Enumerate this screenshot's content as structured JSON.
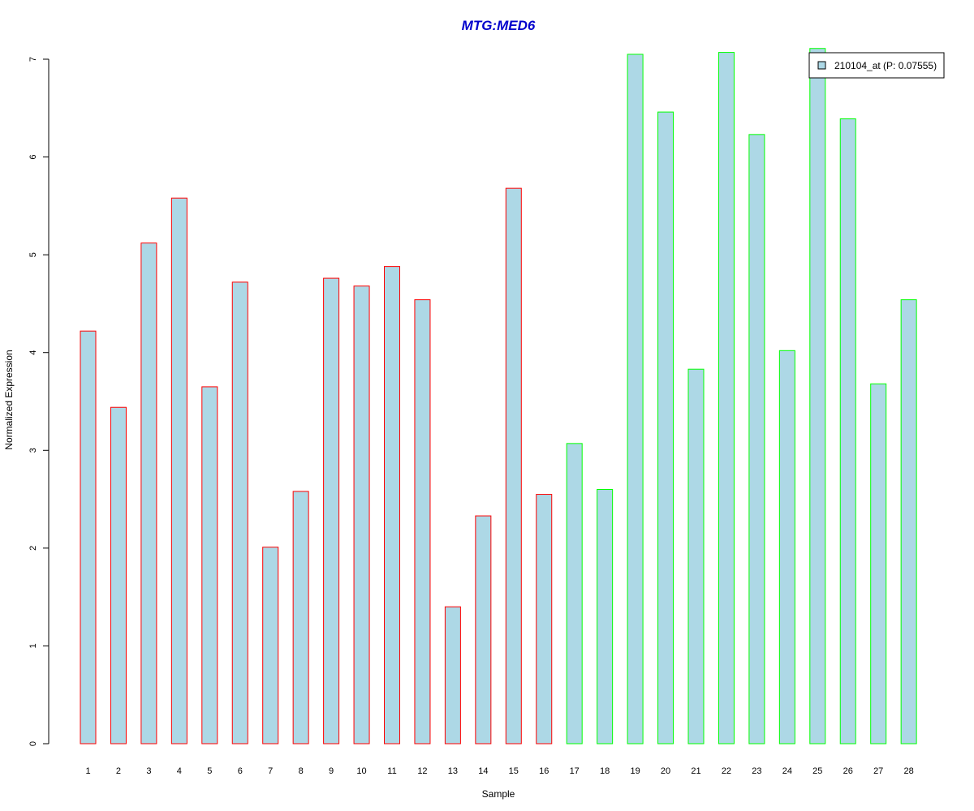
{
  "chart_data": {
    "type": "bar",
    "title": "MTG:MED6",
    "xlabel": "Sample",
    "ylabel": "Normalized Expression",
    "categories": [
      "1",
      "2",
      "3",
      "4",
      "5",
      "6",
      "7",
      "8",
      "9",
      "10",
      "11",
      "12",
      "13",
      "14",
      "15",
      "16",
      "17",
      "18",
      "19",
      "20",
      "21",
      "22",
      "23",
      "24",
      "25",
      "26",
      "27",
      "28"
    ],
    "series": [
      {
        "name": "210104_at (P: 0.07555)",
        "values": [
          4.22,
          3.44,
          5.12,
          5.58,
          3.65,
          4.72,
          2.01,
          2.58,
          4.76,
          4.68,
          4.88,
          4.54,
          1.4,
          2.33,
          5.68,
          2.55,
          3.07,
          2.6,
          7.05,
          6.46,
          3.83,
          7.07,
          6.23,
          4.02,
          7.11,
          6.39,
          3.68,
          4.54
        ]
      }
    ],
    "groups": [
      "red",
      "red",
      "red",
      "red",
      "red",
      "red",
      "red",
      "red",
      "red",
      "red",
      "red",
      "red",
      "red",
      "red",
      "red",
      "red",
      "green",
      "green",
      "green",
      "green",
      "green",
      "green",
      "green",
      "green",
      "green",
      "green",
      "green",
      "green"
    ],
    "ylim": [
      0,
      7
    ],
    "yticks": [
      0,
      1,
      2,
      3,
      4,
      5,
      6,
      7
    ],
    "grid": false,
    "legend_position": "top-right",
    "colors": {
      "bar_fill": "#add8e6",
      "group_red": "#ff0000",
      "group_green": "#00ff00",
      "title": "#0000cc",
      "axis": "#000000"
    }
  }
}
